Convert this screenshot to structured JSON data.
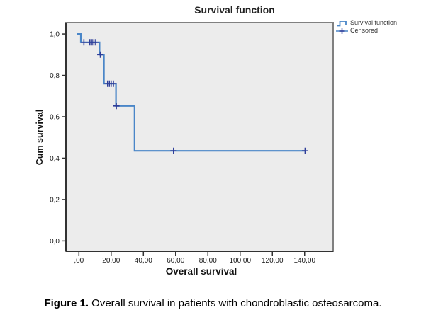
{
  "figure": {
    "caption_label": "Figure 1.",
    "caption_text": " Overall survival in patients with chondroblastic osteosarcoma."
  },
  "legend": {
    "items": [
      {
        "label": "Survival function",
        "symbol": "step-line"
      },
      {
        "label": "Censored",
        "symbol": "plus-marker"
      }
    ]
  },
  "chart_data": {
    "type": "line",
    "subtype": "kaplan-meier-step-function",
    "title": "Survival function",
    "xlabel": "Overall survival",
    "ylabel": "Cum survival",
    "xlim": [
      -8.05,
      157.7
    ],
    "ylim": [
      -0.05,
      1.055
    ],
    "grid": false,
    "legend_position": "top-right-outside",
    "x_ticks": {
      "values": [
        0,
        20,
        40,
        60,
        80,
        100,
        120,
        140
      ],
      "labels": [
        ",00",
        "20,00",
        "40,00",
        "60,00",
        "80,00",
        "100,00",
        "120,00",
        "140,00"
      ]
    },
    "y_ticks": {
      "values": [
        0,
        0.2,
        0.4,
        0.6,
        0.8,
        1.0
      ],
      "labels": [
        "0,0",
        "0,2",
        "0,4",
        "0,6",
        "0,8",
        "1,0"
      ]
    },
    "survival_steps": [
      [
        -1.0,
        1.0
      ],
      [
        1.2,
        1.0
      ],
      [
        1.2,
        0.96
      ],
      [
        12.8,
        0.96
      ],
      [
        12.8,
        0.9
      ],
      [
        15.5,
        0.9
      ],
      [
        15.5,
        0.76
      ],
      [
        23.0,
        0.76
      ],
      [
        23.0,
        0.652
      ],
      [
        34.5,
        0.652
      ],
      [
        34.5,
        0.435
      ],
      [
        140.8,
        0.435
      ]
    ],
    "censored_points": [
      [
        3.1,
        0.96
      ],
      [
        6.8,
        0.96
      ],
      [
        8.2,
        0.96
      ],
      [
        9.3,
        0.96
      ],
      [
        10.4,
        0.96
      ],
      [
        13.3,
        0.9
      ],
      [
        17.8,
        0.76
      ],
      [
        18.9,
        0.76
      ],
      [
        20.0,
        0.76
      ],
      [
        21.4,
        0.76
      ],
      [
        23.2,
        0.652
      ],
      [
        58.7,
        0.435
      ],
      [
        140.3,
        0.435
      ]
    ],
    "colors": {
      "line": "#4a86c8",
      "censored": "#2f3e99",
      "plot_bg": "#ececec",
      "frame": "#808080",
      "axis": "#323232",
      "tick_text": "#1a1a1a"
    }
  }
}
